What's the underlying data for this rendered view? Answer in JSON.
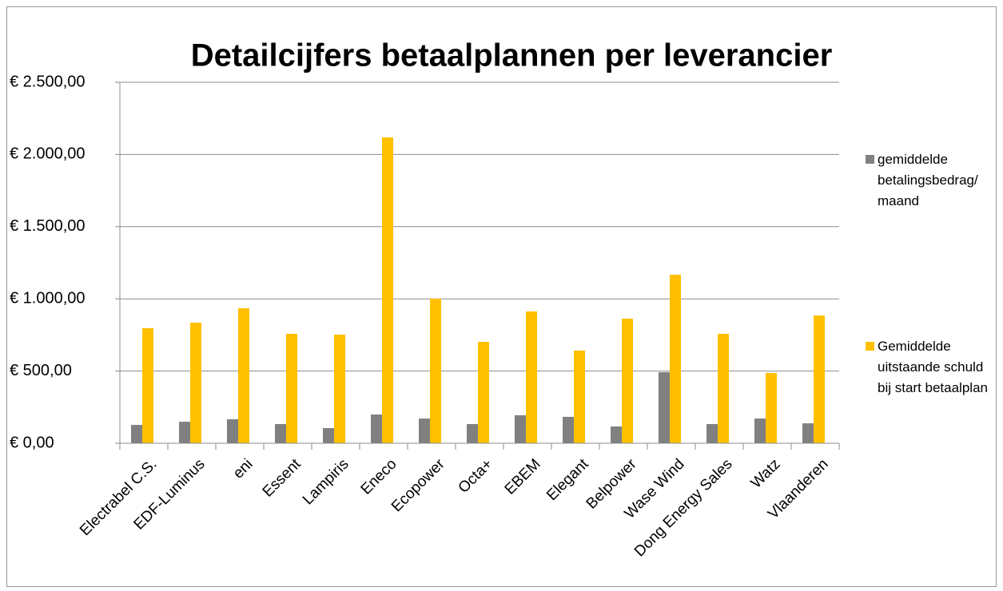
{
  "chart_data": {
    "type": "bar",
    "title": "Detailcijfers betaalplannen per leverancier",
    "categories": [
      "Electrabel C.S.",
      "EDF-Luminus",
      "eni",
      "Essent",
      "Lampiris",
      "Eneco",
      "Ecopower",
      "Octa+",
      "EBEM",
      "Elegant",
      "Belpower",
      "Wase Wind",
      "Dong Energy Sales",
      "Watz",
      "Vlaanderen"
    ],
    "series": [
      {
        "name": "gemiddelde betalingsbedrag/ maand",
        "color": "#808080",
        "values": [
          127,
          149,
          166,
          133,
          105,
          199,
          171,
          133,
          194,
          183,
          116,
          492,
          133,
          171,
          138
        ]
      },
      {
        "name": "Gemiddelde uitstaande schuld bij start betaalplan",
        "color": "#ffc000",
        "values": [
          797,
          835,
          935,
          758,
          752,
          2118,
          1001,
          702,
          913,
          642,
          863,
          1167,
          758,
          487,
          885
        ]
      }
    ],
    "ylim": [
      0,
      2500
    ],
    "yticks": [
      {
        "value": 0,
        "label": "€ 0,00"
      },
      {
        "value": 500,
        "label": "€ 500,00"
      },
      {
        "value": 1000,
        "label": "€ 1.000,00"
      },
      {
        "value": 1500,
        "label": "€ 1.500,00"
      },
      {
        "value": 2000,
        "label": "€ 2.000,00"
      },
      {
        "value": 2500,
        "label": "€ 2.500,00"
      }
    ],
    "grid": true,
    "legend": "right"
  }
}
